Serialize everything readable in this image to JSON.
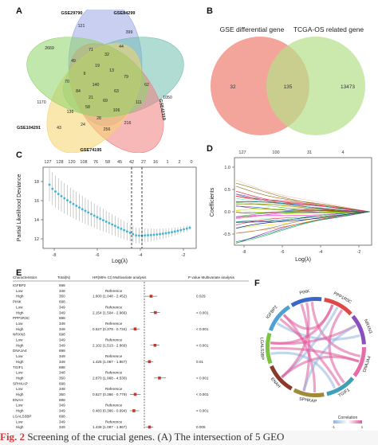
{
  "panels": {
    "a": {
      "label": "A"
    },
    "b": {
      "label": "B"
    },
    "c": {
      "label": "C"
    },
    "d": {
      "label": "D"
    },
    "e": {
      "label": "E"
    },
    "f": {
      "label": "F"
    }
  },
  "venn5": {
    "sets": [
      "GSE29790",
      "GSE84299",
      "GSE42310",
      "GSE74195",
      "GSE104291"
    ],
    "colors": [
      "#9aa7e6",
      "#6fbfae",
      "#f07d7d",
      "#f5d36b",
      "#8fd46a"
    ],
    "numbers": [
      "2669",
      "121",
      "399",
      "49",
      "71",
      "32",
      "44",
      "19",
      "9",
      "13",
      "79",
      "70",
      "84",
      "140",
      "1170",
      "1050",
      "63",
      "111",
      "69",
      "216",
      "58",
      "106",
      "136",
      "28",
      "24",
      "256",
      "43",
      "62",
      "21"
    ]
  },
  "venn2": {
    "left_label": "GSE differential gene",
    "right_label": "TCGA-OS related gene",
    "left_only": "32",
    "overlap": "135",
    "right_only": "13473",
    "colors": [
      "#f2958a",
      "#b6e08a"
    ]
  },
  "lasso_cv": {
    "top_ticks": [
      "127",
      "128",
      "120",
      "108",
      "76",
      "58",
      "45",
      "42",
      "27",
      "16",
      "1",
      "2",
      "0"
    ],
    "ylabel": "Partial Likelihood Deviance",
    "xlabel": "Log(λ)",
    "x_ticks": [
      "-8",
      "-6",
      "-4",
      "-2"
    ],
    "y_ticks": [
      "12",
      "14",
      "16",
      "18"
    ]
  },
  "lasso_path": {
    "top_ticks": [
      "127",
      "100",
      "31",
      "4"
    ],
    "ylabel": "Coefficients",
    "xlabel": "Log(λ)",
    "x_ticks": [
      "-8",
      "-6",
      "-4",
      "-2"
    ],
    "y_ticks": [
      "-0.5",
      "0.0",
      "0.5",
      "1.0"
    ]
  },
  "forest": {
    "headers": [
      "Characteristics",
      "Total(N)",
      "HR(95% CI) Multivariate analysis",
      "P value Multivariate analysis"
    ],
    "rows": [
      {
        "name": "IGFBP2",
        "n": "698",
        "hr": "",
        "p": ""
      },
      {
        "name": "Low",
        "n": "348",
        "hr": "Reference",
        "p": ""
      },
      {
        "name": "High",
        "n": "350",
        "hr": "1.600 (1.048 - 2.452)",
        "p": "0.029"
      },
      {
        "name": "PINK",
        "n": "698",
        "hr": "",
        "p": ""
      },
      {
        "name": "Low",
        "n": "349",
        "hr": "Reference",
        "p": ""
      },
      {
        "name": "High",
        "n": "349",
        "hr": "2.154 (1.504 - 2.966)",
        "p": "< 0.001"
      },
      {
        "name": "PPP1R3C",
        "n": "698",
        "hr": "",
        "p": ""
      },
      {
        "name": "Low",
        "n": "349",
        "hr": "Reference",
        "p": ""
      },
      {
        "name": "High",
        "n": "349",
        "hr": "0.527 (0.379 - 0.734)",
        "p": "< 0.001"
      },
      {
        "name": "NRXN3",
        "n": "698",
        "hr": "",
        "p": ""
      },
      {
        "name": "Low",
        "n": "349",
        "hr": "Reference",
        "p": ""
      },
      {
        "name": "High",
        "n": "349",
        "hr": "2.102 (1.513 - 2.869)",
        "p": "< 0.001"
      },
      {
        "name": "DNAJA4",
        "n": "698",
        "hr": "",
        "p": ""
      },
      {
        "name": "Low",
        "n": "349",
        "hr": "Reference",
        "p": ""
      },
      {
        "name": "High",
        "n": "349",
        "hr": "1.425 (1.087 - 1.867)",
        "p": "0.01"
      },
      {
        "name": "TGIF1",
        "n": "698",
        "hr": "",
        "p": ""
      },
      {
        "name": "Low",
        "n": "348",
        "hr": "Reference",
        "p": ""
      },
      {
        "name": "High",
        "n": "350",
        "hr": "2.870 (1.968 - 4.530)",
        "p": "< 0.001"
      },
      {
        "name": "SPHKAP",
        "n": "698",
        "hr": "",
        "p": ""
      },
      {
        "name": "Low",
        "n": "348",
        "hr": "Reference",
        "p": ""
      },
      {
        "name": "High",
        "n": "350",
        "hr": "0.527 (0.366 - 0.779)",
        "p": "< 0.001"
      },
      {
        "name": "ENAH",
        "n": "698",
        "hr": "",
        "p": ""
      },
      {
        "name": "Low",
        "n": "349",
        "hr": "Reference",
        "p": ""
      },
      {
        "name": "High",
        "n": "349",
        "hr": "0.483 (0.366 - 0.694)",
        "p": "< 0.001"
      },
      {
        "name": "LGALS3BP",
        "n": "698",
        "hr": "",
        "p": ""
      },
      {
        "name": "Low",
        "n": "349",
        "hr": "Reference",
        "p": ""
      },
      {
        "name": "High",
        "n": "349",
        "hr": "1.438 (1.087 - 1.867)",
        "p": "0.005"
      }
    ]
  },
  "chord": {
    "genes": [
      "IGFBP2",
      "PINK",
      "PPP1R3C",
      "NRXN3",
      "DNAJA4",
      "TGIF1",
      "SPHKAP",
      "ENAH",
      "LGALS3BP"
    ],
    "colors": [
      "#4fa0d6",
      "#3a66c8",
      "#e04848",
      "#8a4fbf",
      "#e86aa8",
      "#3fa0b8",
      "#a08a3a",
      "#8a3a2a",
      "#7ac43f"
    ],
    "legend_title": "Correlation",
    "legend_min": "-1",
    "legend_max": "1"
  },
  "caption": {
    "fig": "Fig. 2",
    "text": "Screening of the crucial genes. (A) The intersection of 5 GEO"
  }
}
